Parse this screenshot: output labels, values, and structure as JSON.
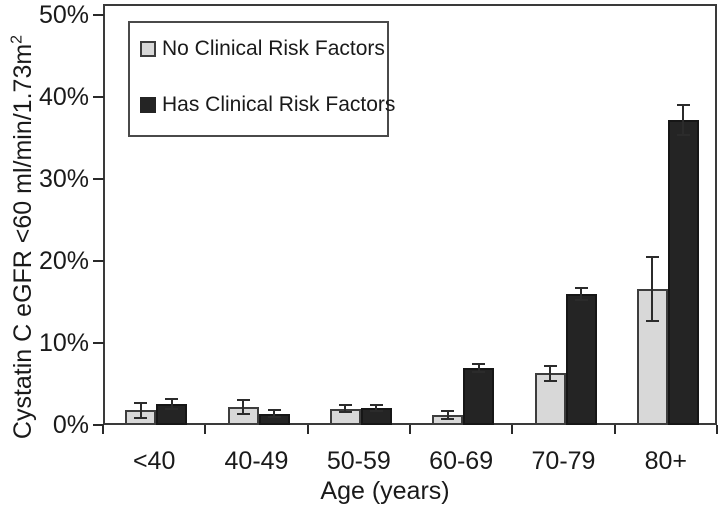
{
  "chart_data": {
    "type": "bar",
    "title": "",
    "categories": [
      "<40",
      "40-49",
      "50-59",
      "60-69",
      "70-79",
      "80+"
    ],
    "series": [
      {
        "name": "No Clinical Risk Factors",
        "color": "#d8d8d8",
        "values": [
          1.8,
          2.2,
          2.0,
          1.2,
          6.3,
          16.6
        ],
        "errors": [
          0.9,
          0.9,
          0.4,
          0.5,
          0.9,
          3.9
        ]
      },
      {
        "name": "Has Clinical Risk Factors",
        "color": "#242424",
        "values": [
          2.6,
          1.4,
          2.1,
          7.0,
          16.0,
          37.2
        ],
        "errors": [
          0.6,
          0.4,
          0.4,
          0.5,
          0.7,
          1.8
        ]
      }
    ],
    "xlabel": "Age (years)",
    "ylabel": "Cystatin C eGFR <60 ml/min/1.73m",
    "ylabel_sup": "2",
    "yticks": [
      0,
      10,
      20,
      30,
      40,
      50
    ],
    "ytick_suffix": "%",
    "ylim": [
      0,
      51.3
    ],
    "grid": false,
    "legend_position": "top-left",
    "error_bars": true
  }
}
